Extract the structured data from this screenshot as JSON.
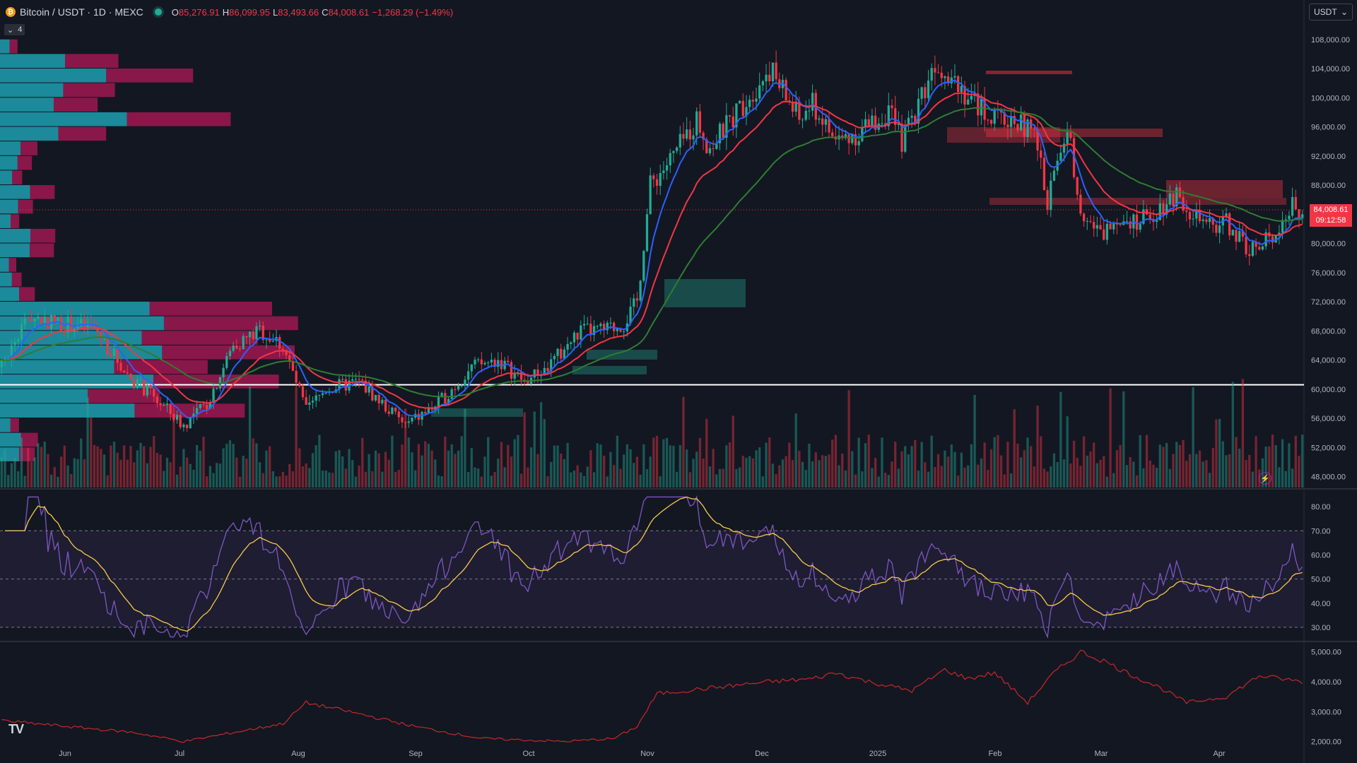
{
  "header": {
    "symbol": "Bitcoin / USDT · 1D · MEXC",
    "open_label": "O",
    "open": "85,276.91",
    "high_label": "H",
    "high": "86,099.95",
    "low_label": "L",
    "low": "83,493.66",
    "close_label": "C",
    "close": "84,008.61",
    "change": "−1,268.29 (−1.49%)"
  },
  "indicator_toggle": {
    "count": "4"
  },
  "currency": "USDT",
  "last_price": {
    "price": "84,008.61",
    "countdown": "09:12:58"
  },
  "colors": {
    "up": "#22ab94",
    "down": "#f23645",
    "ema_fast": "#2962ff",
    "ema_mid": "#f23645",
    "ema_slow": "#2e7d32",
    "rsi": "#7e57c2",
    "rsi_ma": "#f7c948",
    "indicator_line": "#c62828"
  },
  "icons": {
    "coin": "bitcoin-icon",
    "logo": "tradingview-logo",
    "replay": "lightning-icon"
  },
  "chart_data": [
    {
      "type": "candlestick",
      "price_axis": [
        "108,000.00",
        "104,000.00",
        "100,000.00",
        "96,000.00",
        "92,000.00",
        "88,000.00",
        "84,000.00",
        "80,000.00",
        "76,000.00",
        "72,000.00",
        "68,000.00",
        "64,000.00",
        "60,000.00",
        "56,000.00",
        "52,000.00",
        "48,000.00"
      ],
      "ylim": [
        46500,
        110500
      ],
      "time_axis": [
        "Jun",
        "Jul",
        "Aug",
        "Sep",
        "Oct",
        "Nov",
        "Dec",
        "2025",
        "Feb",
        "Mar",
        "Apr"
      ],
      "horizontal_line": 60600,
      "anchors": [
        [
          0,
          63000
        ],
        [
          8,
          70000
        ],
        [
          18,
          69000
        ],
        [
          28,
          68500
        ],
        [
          38,
          62000
        ],
        [
          48,
          58000
        ],
        [
          55,
          55000
        ],
        [
          62,
          58000
        ],
        [
          70,
          66000
        ],
        [
          78,
          68000
        ],
        [
          85,
          66000
        ],
        [
          92,
          57000
        ],
        [
          98,
          60000
        ],
        [
          108,
          61000
        ],
        [
          115,
          58000
        ],
        [
          122,
          55000
        ],
        [
          132,
          58000
        ],
        [
          142,
          63000
        ],
        [
          150,
          64000
        ],
        [
          158,
          61000
        ],
        [
          165,
          63000
        ],
        [
          175,
          68000
        ],
        [
          182,
          68000
        ],
        [
          188,
          69000
        ],
        [
          192,
          72000
        ],
        [
          196,
          88000
        ],
        [
          203,
          92000
        ],
        [
          210,
          97000
        ],
        [
          214,
          93000
        ],
        [
          222,
          98000
        ],
        [
          232,
          104000
        ],
        [
          236,
          101000
        ],
        [
          241,
          97000
        ],
        [
          245,
          99000
        ],
        [
          252,
          94000
        ],
        [
          258,
          95000
        ],
        [
          268,
          98000
        ],
        [
          272,
          94000
        ],
        [
          275,
          97000
        ],
        [
          282,
          105000
        ],
        [
          288,
          103000
        ],
        [
          292,
          100000
        ],
        [
          300,
          97000
        ],
        [
          306,
          97000
        ],
        [
          312,
          95000
        ],
        [
          316,
          86000
        ],
        [
          322,
          96000
        ],
        [
          326,
          85000
        ],
        [
          332,
          81000
        ],
        [
          338,
          84000
        ],
        [
          344,
          83000
        ],
        [
          350,
          85000
        ],
        [
          355,
          87000
        ],
        [
          360,
          84000
        ],
        [
          364,
          82000
        ],
        [
          370,
          83000
        ],
        [
          375,
          80000
        ],
        [
          380,
          79000
        ],
        [
          385,
          82000
        ],
        [
          390,
          85000
        ],
        [
          393,
          84000
        ]
      ],
      "series": [
        {
          "name": "",
          "kind": "ema-fast"
        },
        {
          "name": "",
          "kind": "ema-mid"
        },
        {
          "name": "",
          "kind": "ema-slow"
        }
      ]
    },
    {
      "type": "line",
      "panel": "oscillator",
      "y_axis": [
        "80.00",
        "70.00",
        "60.00",
        "50.00",
        "40.00",
        "30.00"
      ],
      "ylim": [
        25,
        85
      ],
      "bands": [
        30,
        70
      ],
      "midline": 50
    },
    {
      "type": "line",
      "panel": "indicator",
      "y_axis": [
        "5,000.00",
        "4,000.00",
        "3,000.00",
        "2,000.00"
      ],
      "ylim": [
        1800,
        5300
      ],
      "anchors": [
        [
          0,
          2700
        ],
        [
          20,
          2500
        ],
        [
          40,
          2300
        ],
        [
          55,
          2000
        ],
        [
          70,
          2300
        ],
        [
          85,
          2600
        ],
        [
          92,
          3300
        ],
        [
          105,
          3000
        ],
        [
          125,
          2500
        ],
        [
          145,
          2100
        ],
        [
          170,
          2000
        ],
        [
          185,
          2100
        ],
        [
          192,
          2500
        ],
        [
          198,
          3600
        ],
        [
          215,
          3800
        ],
        [
          232,
          4000
        ],
        [
          245,
          4100
        ],
        [
          252,
          4300
        ],
        [
          262,
          4000
        ],
        [
          275,
          3700
        ],
        [
          285,
          4400
        ],
        [
          292,
          4100
        ],
        [
          300,
          4300
        ],
        [
          310,
          3300
        ],
        [
          318,
          4300
        ],
        [
          326,
          5000
        ],
        [
          333,
          4700
        ],
        [
          340,
          4300
        ],
        [
          350,
          3800
        ],
        [
          358,
          3300
        ],
        [
          370,
          3500
        ],
        [
          380,
          4200
        ],
        [
          393,
          4000
        ]
      ]
    }
  ]
}
